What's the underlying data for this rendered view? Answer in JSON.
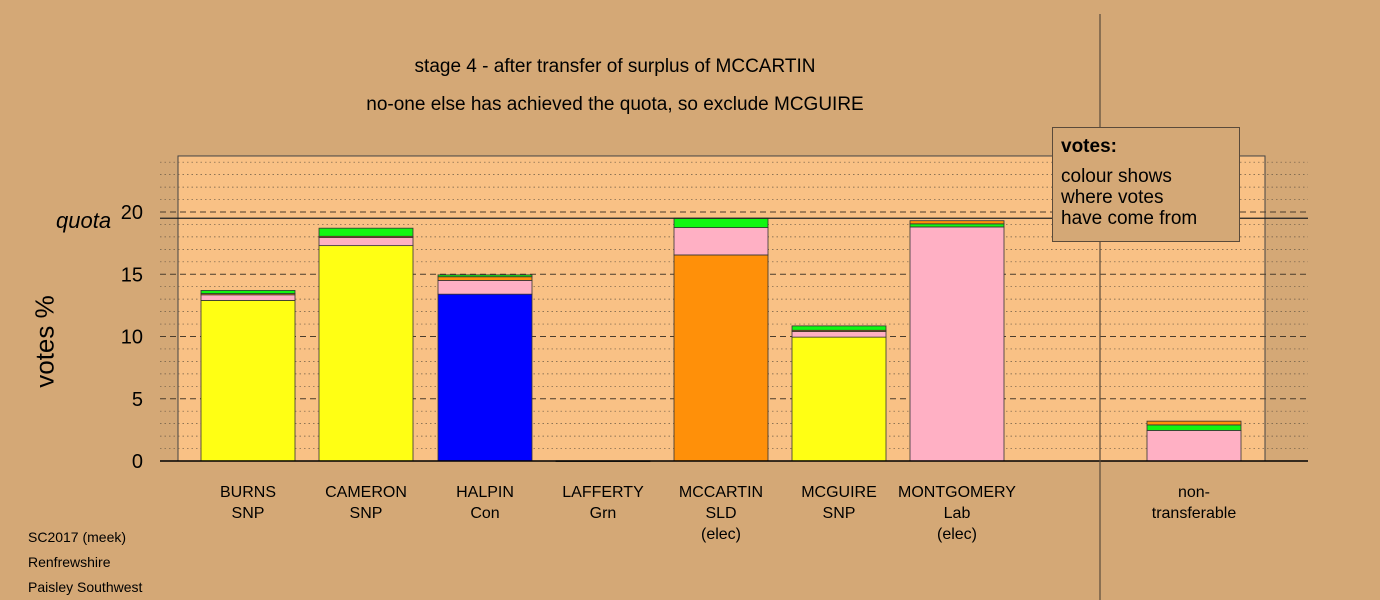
{
  "titles": {
    "line1": "stage 4 - after transfer of surplus of MCCARTIN",
    "line2": "no-one else has achieved the quota, so exclude MCGUIRE"
  },
  "footer": {
    "line1": "SC2017 (meek)",
    "line2": "Renfrewshire",
    "line3": "Paisley Southwest"
  },
  "legend": {
    "title": "votes:",
    "line1": "colour shows",
    "line2": "where votes",
    "line3": "have come from"
  },
  "colors": {
    "background": "#d4a876",
    "plot_area": "#f9c185",
    "SNP": "#ffff14",
    "Con": "#0000ff",
    "SLD": "#ff9009",
    "Lab": "#ffb0c4",
    "Grn": "#12f612"
  },
  "chart_data": {
    "type": "bar",
    "stacked": true,
    "ylabel": "votes %",
    "quota_label": "quota",
    "quota": 19.5,
    "ylim": [
      0,
      24.5
    ],
    "yticks": [
      0,
      5,
      10,
      15,
      20
    ],
    "categories": [
      {
        "name": "BURNS",
        "party": "SNP",
        "note": ""
      },
      {
        "name": "CAMERON",
        "party": "SNP",
        "note": ""
      },
      {
        "name": "HALPIN",
        "party": "Con",
        "note": ""
      },
      {
        "name": "LAFFERTY",
        "party": "Grn",
        "note": ""
      },
      {
        "name": "MCCARTIN",
        "party": "SLD",
        "note": "(elec)"
      },
      {
        "name": "MCGUIRE",
        "party": "SNP",
        "note": ""
      },
      {
        "name": "MONTGOMERY",
        "party": "Lab",
        "note": "(elec)"
      }
    ],
    "nontransferable": {
      "label1": "non-",
      "label2": "transferable"
    },
    "stacks": [
      [
        {
          "from": "SNP",
          "value": 12.9
        },
        {
          "from": "Lab",
          "value": 0.45
        },
        {
          "from": "SLD",
          "value": 0.1
        },
        {
          "from": "Grn",
          "value": 0.25
        }
      ],
      [
        {
          "from": "SNP",
          "value": 17.3
        },
        {
          "from": "Lab",
          "value": 0.65
        },
        {
          "from": "SLD",
          "value": 0.1
        },
        {
          "from": "Grn",
          "value": 0.65
        }
      ],
      [
        {
          "from": "Con",
          "value": 13.4
        },
        {
          "from": "Lab",
          "value": 1.1
        },
        {
          "from": "SLD",
          "value": 0.3
        },
        {
          "from": "Grn",
          "value": 0.15
        }
      ],
      [
        {
          "from": "Grn",
          "value": 0.02
        }
      ],
      [
        {
          "from": "SLD",
          "value": 16.55
        },
        {
          "from": "Lab",
          "value": 2.2
        },
        {
          "from": "Grn",
          "value": 0.75
        }
      ],
      [
        {
          "from": "SNP",
          "value": 9.95
        },
        {
          "from": "Lab",
          "value": 0.45
        },
        {
          "from": "SLD",
          "value": 0.1
        },
        {
          "from": "Grn",
          "value": 0.35
        }
      ],
      [
        {
          "from": "Lab",
          "value": 18.8
        },
        {
          "from": "Grn",
          "value": 0.25
        },
        {
          "from": "SLD",
          "value": 0.25
        }
      ],
      [
        {
          "from": "Lab",
          "value": 2.45
        },
        {
          "from": "Grn",
          "value": 0.45
        },
        {
          "from": "SLD",
          "value": 0.3
        }
      ]
    ]
  }
}
